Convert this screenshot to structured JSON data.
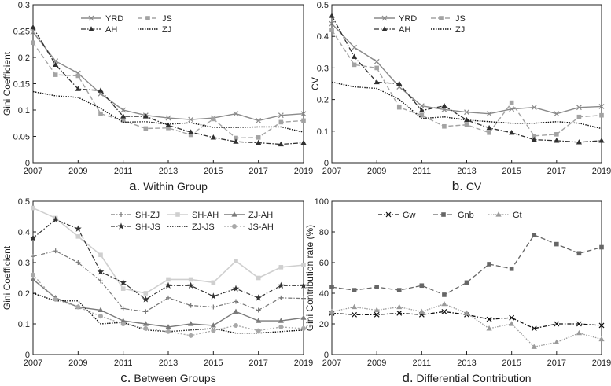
{
  "chart_data": [
    {
      "id": "a",
      "type": "line",
      "caption_letter": "a.",
      "caption_text": "Within Group",
      "ylabel": "Gini Coefficient",
      "xlabel": "",
      "ylim": [
        0,
        0.3
      ],
      "yticks": [
        "0",
        "0.05",
        "0.1",
        "0.15",
        "0.2",
        "0.25",
        "0.3"
      ],
      "xticks": [
        "2007",
        "2009",
        "2011",
        "2013",
        "2015",
        "2017",
        "2019"
      ],
      "x": [
        2007,
        2008,
        2009,
        2010,
        2011,
        2012,
        2013,
        2014,
        2015,
        2016,
        2017,
        2018,
        2019
      ],
      "legend_cols": 2,
      "series": [
        {
          "name": "YRD",
          "style": "yrd",
          "values": [
            0.248,
            0.193,
            0.17,
            0.131,
            0.1,
            0.09,
            0.085,
            0.082,
            0.085,
            0.093,
            0.08,
            0.09,
            0.093
          ]
        },
        {
          "name": "JS",
          "style": "js",
          "values": [
            0.228,
            0.167,
            0.165,
            0.093,
            0.08,
            0.065,
            0.066,
            0.053,
            0.083,
            0.047,
            0.048,
            0.077,
            0.08
          ]
        },
        {
          "name": "AH",
          "style": "ah",
          "values": [
            0.257,
            0.186,
            0.14,
            0.137,
            0.088,
            0.088,
            0.071,
            0.058,
            0.048,
            0.04,
            0.038,
            0.035,
            0.038
          ]
        },
        {
          "name": "ZJ",
          "style": "zj",
          "values": [
            0.135,
            0.127,
            0.124,
            0.103,
            0.077,
            0.078,
            0.073,
            0.076,
            0.067,
            0.067,
            0.068,
            0.068,
            0.058
          ]
        }
      ]
    },
    {
      "id": "b",
      "type": "line",
      "caption_letter": "b.",
      "caption_text": "CV",
      "ylabel": "CV",
      "xlabel": "",
      "ylim": [
        0,
        0.5
      ],
      "yticks": [
        "0",
        "0.1",
        "0.2",
        "0.3",
        "0.4",
        "0.5"
      ],
      "xticks": [
        "2007",
        "2009",
        "2011",
        "2013",
        "2015",
        "2017",
        "2019"
      ],
      "x": [
        2007,
        2008,
        2009,
        2010,
        2011,
        2012,
        2013,
        2014,
        2015,
        2016,
        2017,
        2018,
        2019
      ],
      "legend_cols": 2,
      "series": [
        {
          "name": "YRD",
          "style": "yrd",
          "values": [
            0.44,
            0.365,
            0.32,
            0.24,
            0.18,
            0.168,
            0.16,
            0.155,
            0.17,
            0.175,
            0.155,
            0.175,
            0.178
          ]
        },
        {
          "name": "JS",
          "style": "js",
          "values": [
            0.42,
            0.31,
            0.3,
            0.175,
            0.15,
            0.115,
            0.12,
            0.095,
            0.19,
            0.085,
            0.09,
            0.145,
            0.15
          ]
        },
        {
          "name": "AH",
          "style": "ah",
          "values": [
            0.465,
            0.335,
            0.255,
            0.25,
            0.165,
            0.18,
            0.135,
            0.11,
            0.095,
            0.073,
            0.07,
            0.065,
            0.07
          ]
        },
        {
          "name": "ZJ",
          "style": "zj",
          "values": [
            0.255,
            0.24,
            0.235,
            0.2,
            0.14,
            0.145,
            0.135,
            0.13,
            0.125,
            0.125,
            0.13,
            0.125,
            0.108
          ]
        }
      ]
    },
    {
      "id": "c",
      "type": "line",
      "caption_letter": "c.",
      "caption_text": "Between Groups",
      "ylabel": "Gini Coefficient",
      "xlabel": "",
      "ylim": [
        0,
        0.5
      ],
      "yticks": [
        "0",
        "0.1",
        "0.2",
        "0.3",
        "0.4",
        "0.5"
      ],
      "xticks": [
        "2007",
        "2009",
        "2011",
        "2013",
        "2015",
        "2017",
        "2019"
      ],
      "x": [
        2007,
        2008,
        2009,
        2010,
        2011,
        2012,
        2013,
        2014,
        2015,
        2016,
        2017,
        2018,
        2019
      ],
      "legend_cols": 3,
      "series": [
        {
          "name": "SH-ZJ",
          "style": "shzj",
          "values": [
            0.32,
            0.338,
            0.3,
            0.24,
            0.15,
            0.14,
            0.185,
            0.16,
            0.155,
            0.173,
            0.145,
            0.185,
            0.183
          ]
        },
        {
          "name": "SH-AH",
          "style": "shah",
          "values": [
            0.478,
            0.445,
            0.385,
            0.325,
            0.215,
            0.2,
            0.245,
            0.245,
            0.235,
            0.305,
            0.25,
            0.285,
            0.292
          ]
        },
        {
          "name": "ZJ-AH",
          "style": "zjah",
          "values": [
            0.245,
            0.185,
            0.155,
            0.145,
            0.11,
            0.1,
            0.09,
            0.1,
            0.095,
            0.14,
            0.11,
            0.11,
            0.12
          ]
        },
        {
          "name": "SH-JS",
          "style": "shjs",
          "values": [
            0.38,
            0.44,
            0.41,
            0.27,
            0.235,
            0.18,
            0.225,
            0.225,
            0.19,
            0.215,
            0.185,
            0.225,
            0.225
          ]
        },
        {
          "name": "ZJ-JS",
          "style": "zjjs",
          "values": [
            0.2,
            0.175,
            0.175,
            0.1,
            0.105,
            0.08,
            0.075,
            0.08,
            0.085,
            0.07,
            0.07,
            0.075,
            0.08
          ]
        },
        {
          "name": "JS-AH",
          "style": "jsah",
          "values": [
            0.26,
            0.18,
            0.155,
            0.125,
            0.1,
            0.085,
            0.075,
            0.062,
            0.078,
            0.095,
            0.078,
            0.09,
            0.085
          ]
        }
      ]
    },
    {
      "id": "d",
      "type": "line",
      "caption_letter": "d.",
      "caption_text": "Differential Contribution",
      "ylabel": "Gini Contribution rate (%)",
      "xlabel": "",
      "ylim": [
        0,
        100
      ],
      "yticks": [
        "0",
        "20",
        "40",
        "60",
        "80",
        "100"
      ],
      "xticks": [
        "2007",
        "2009",
        "2011",
        "2013",
        "2015",
        "2017",
        "2019"
      ],
      "x": [
        2007,
        2008,
        2009,
        2010,
        2011,
        2012,
        2013,
        2014,
        2015,
        2016,
        2017,
        2018,
        2019
      ],
      "legend_cols": 3,
      "series": [
        {
          "name": "Gw",
          "style": "gw",
          "values": [
            27,
            26,
            26,
            27,
            26,
            28,
            26,
            23,
            24,
            17,
            20,
            20,
            19
          ]
        },
        {
          "name": "Gnb",
          "style": "gnb",
          "values": [
            44,
            42,
            44,
            42,
            45,
            39,
            47,
            59,
            56,
            78,
            72,
            66,
            70
          ]
        },
        {
          "name": "Gt",
          "style": "gt",
          "values": [
            28,
            31,
            29,
            31,
            28,
            33,
            27,
            17,
            20,
            5,
            8,
            14,
            10
          ]
        }
      ]
    }
  ]
}
